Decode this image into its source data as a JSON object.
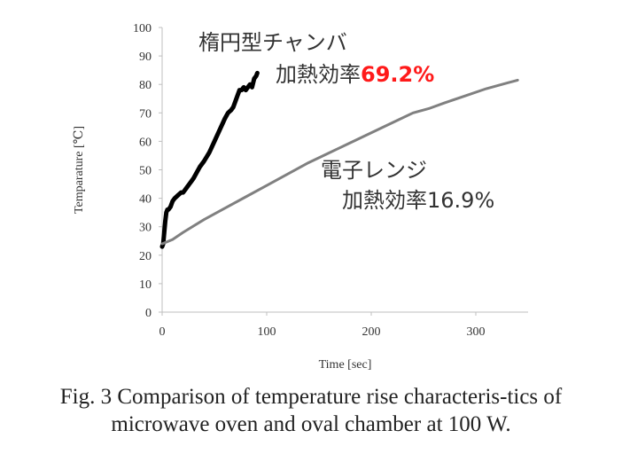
{
  "chart_data": {
    "type": "line",
    "xlabel": "Time [sec]",
    "ylabel": "Temparature  [℃]",
    "xlim": [
      0,
      350
    ],
    "ylim": [
      0,
      100
    ],
    "xticks": [
      0,
      100,
      200,
      300
    ],
    "yticks": [
      0,
      10,
      20,
      30,
      40,
      50,
      60,
      70,
      80,
      90,
      100
    ],
    "grid": false,
    "series": [
      {
        "name": "楕円型チャンバ",
        "efficiency_label": "加熱効率",
        "efficiency_value": "69.2%",
        "color": "#000000",
        "x": [
          0,
          1,
          2,
          3,
          4,
          5,
          6,
          8,
          10,
          12,
          15,
          18,
          20,
          22,
          24,
          26,
          28,
          30,
          33,
          36,
          40,
          45,
          50,
          55,
          60,
          63,
          66,
          68,
          70,
          72,
          74,
          76,
          78,
          80,
          82,
          84,
          86,
          88,
          90,
          91
        ],
        "y": [
          23,
          24,
          28,
          32,
          35,
          36,
          36,
          37,
          39,
          40,
          41,
          42,
          42,
          43,
          44,
          45,
          46,
          47,
          49,
          51,
          53,
          56,
          60,
          64,
          68,
          70,
          71,
          72,
          74,
          76,
          78,
          78,
          79,
          78,
          79,
          80,
          79,
          82,
          83,
          84
        ]
      },
      {
        "name": "電子レンジ",
        "efficiency_label": "加熱効率",
        "efficiency_value": "16.9%",
        "color": "#808080",
        "x": [
          0,
          10,
          20,
          40,
          60,
          80,
          100,
          120,
          140,
          160,
          180,
          200,
          220,
          240,
          255,
          270,
          290,
          310,
          330,
          340
        ],
        "y": [
          24,
          25.5,
          28,
          32.5,
          36.5,
          40.5,
          44.5,
          48.5,
          52.5,
          56,
          59.5,
          63,
          66.5,
          70,
          71.5,
          73.5,
          76,
          78.5,
          80.5,
          81.5
        ]
      }
    ]
  },
  "caption": {
    "line1": "Fig. 3  Comparison of temperature rise characteris-tics of",
    "line2": "microwave oven and oval chamber at 100 W."
  }
}
